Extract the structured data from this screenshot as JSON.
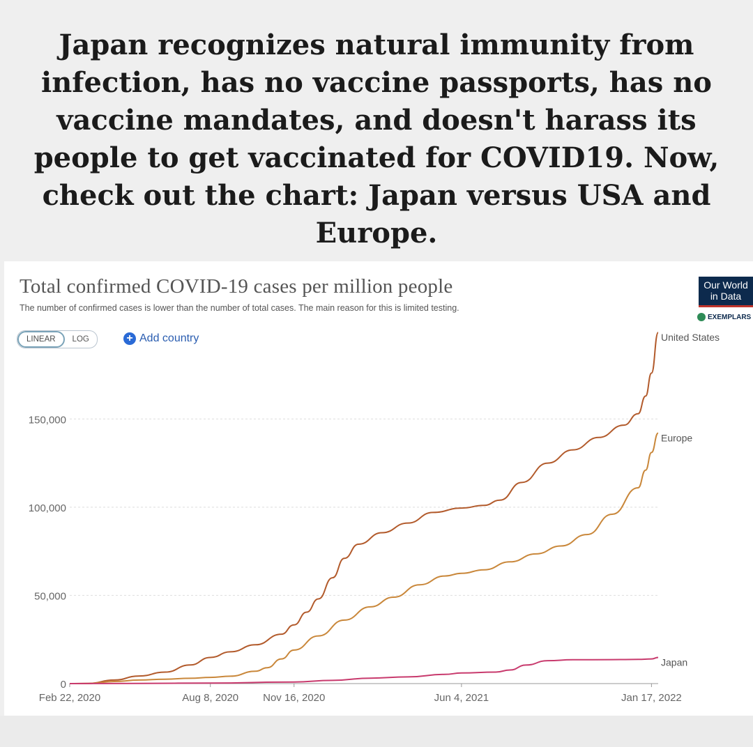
{
  "headline": "Japan recognizes natural immunity from infection, has no vaccine passports, has no vaccine mandates, and doesn't harass its people to get vaccinated for COVID19. Now, check out the chart: Japan versus USA and Europe.",
  "controls": {
    "linear_label": "LINEAR",
    "log_label": "LOG",
    "add_country_label": "Add country"
  },
  "logo": {
    "line1": "Our World",
    "line2": "in Data",
    "sub": "EXEMPLARS"
  },
  "colors": {
    "united_states": "#b25a2b",
    "europe": "#c9873a",
    "japan": "#c83a6d",
    "grid": "#dddddd",
    "axis_text": "#666666"
  },
  "chart_data": {
    "type": "line",
    "title": "Total confirmed COVID-19 cases per million people",
    "subtitle": "The number of confirmed cases is lower than the number of total cases. The main reason for this is limited testing.",
    "xlabel": "",
    "ylabel": "",
    "x_range": [
      "2020-02-22",
      "2022-01-25"
    ],
    "ylim": [
      0,
      190000
    ],
    "y_ticks": [
      0,
      50000,
      100000,
      150000
    ],
    "y_tick_labels": [
      "0",
      "50,000",
      "100,000",
      "150,000"
    ],
    "x_ticks": [
      "2020-02-22",
      "2020-08-08",
      "2020-11-16",
      "2021-06-04",
      "2022-01-17"
    ],
    "x_tick_labels": [
      "Feb 22, 2020",
      "Aug 8, 2020",
      "Nov 16, 2020",
      "Jun 4, 2021",
      "Jan 17, 2022"
    ],
    "grid": true,
    "legend": "end-of-line labels",
    "series": [
      {
        "name": "United States",
        "points": [
          [
            "2020-02-22",
            0
          ],
          [
            "2020-03-15",
            50
          ],
          [
            "2020-04-15",
            2000
          ],
          [
            "2020-05-15",
            4300
          ],
          [
            "2020-06-15",
            6500
          ],
          [
            "2020-07-15",
            10600
          ],
          [
            "2020-08-08",
            14800
          ],
          [
            "2020-09-01",
            18000
          ],
          [
            "2020-10-01",
            22000
          ],
          [
            "2020-11-01",
            28000
          ],
          [
            "2020-11-16",
            33300
          ],
          [
            "2020-12-01",
            40500
          ],
          [
            "2020-12-15",
            48000
          ],
          [
            "2021-01-01",
            60000
          ],
          [
            "2021-01-15",
            71000
          ],
          [
            "2021-02-01",
            79000
          ],
          [
            "2021-03-01",
            85500
          ],
          [
            "2021-04-01",
            91000
          ],
          [
            "2021-05-01",
            97000
          ],
          [
            "2021-06-04",
            99500
          ],
          [
            "2021-07-01",
            101000
          ],
          [
            "2021-07-20",
            104000
          ],
          [
            "2021-08-15",
            114000
          ],
          [
            "2021-09-15",
            125000
          ],
          [
            "2021-10-15",
            132500
          ],
          [
            "2021-11-15",
            139500
          ],
          [
            "2021-12-15",
            146500
          ],
          [
            "2022-01-01",
            153000
          ],
          [
            "2022-01-10",
            163000
          ],
          [
            "2022-01-17",
            176000
          ],
          [
            "2022-01-25",
            199000
          ]
        ]
      },
      {
        "name": "Europe",
        "points": [
          [
            "2020-02-22",
            0
          ],
          [
            "2020-03-15",
            100
          ],
          [
            "2020-04-15",
            1200
          ],
          [
            "2020-05-15",
            2000
          ],
          [
            "2020-06-15",
            2500
          ],
          [
            "2020-07-15",
            3000
          ],
          [
            "2020-08-08",
            3500
          ],
          [
            "2020-09-01",
            4200
          ],
          [
            "2020-10-01",
            7000
          ],
          [
            "2020-10-15",
            9000
          ],
          [
            "2020-11-01",
            14000
          ],
          [
            "2020-11-16",
            19000
          ],
          [
            "2020-12-15",
            27000
          ],
          [
            "2021-01-15",
            36000
          ],
          [
            "2021-02-15",
            43500
          ],
          [
            "2021-03-15",
            49000
          ],
          [
            "2021-04-15",
            56000
          ],
          [
            "2021-05-15",
            61000
          ],
          [
            "2021-06-04",
            62500
          ],
          [
            "2021-07-01",
            64500
          ],
          [
            "2021-08-01",
            69000
          ],
          [
            "2021-09-01",
            73500
          ],
          [
            "2021-10-01",
            78000
          ],
          [
            "2021-11-01",
            84500
          ],
          [
            "2021-12-01",
            96000
          ],
          [
            "2022-01-01",
            111000
          ],
          [
            "2022-01-10",
            121000
          ],
          [
            "2022-01-17",
            131000
          ],
          [
            "2022-01-25",
            142000
          ]
        ]
      },
      {
        "name": "Japan",
        "points": [
          [
            "2020-02-22",
            0
          ],
          [
            "2020-05-15",
            100
          ],
          [
            "2020-08-08",
            300
          ],
          [
            "2020-11-16",
            900
          ],
          [
            "2021-01-01",
            1800
          ],
          [
            "2021-02-15",
            3100
          ],
          [
            "2021-04-01",
            3800
          ],
          [
            "2021-05-15",
            5200
          ],
          [
            "2021-06-04",
            6000
          ],
          [
            "2021-07-15",
            6500
          ],
          [
            "2021-08-01",
            7700
          ],
          [
            "2021-08-20",
            10500
          ],
          [
            "2021-09-15",
            13000
          ],
          [
            "2021-10-15",
            13500
          ],
          [
            "2021-12-01",
            13600
          ],
          [
            "2022-01-01",
            13700
          ],
          [
            "2022-01-17",
            14000
          ],
          [
            "2022-01-25",
            14800
          ]
        ]
      }
    ]
  }
}
